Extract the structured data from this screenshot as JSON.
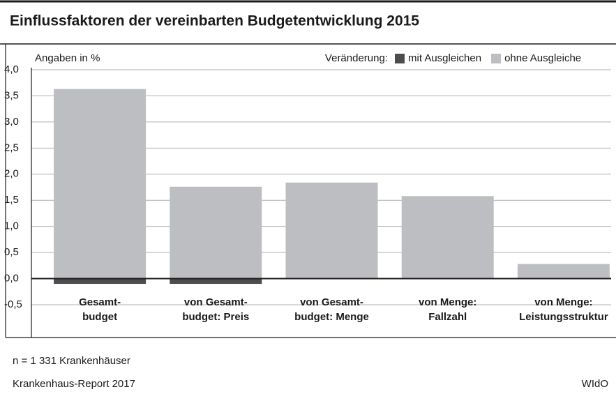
{
  "chart_data": {
    "type": "bar",
    "title": "Einflussfaktoren der vereinbarten Budgetentwicklung 2015",
    "subtitle": "Angaben in %",
    "legend_title": "Veränderung:",
    "categories": [
      [
        "Gesamt-",
        "budget"
      ],
      [
        "von Gesamt-",
        "budget: Preis"
      ],
      [
        "von Gesamt-",
        "budget: Menge"
      ],
      [
        "von Menge:",
        "Fallzahl"
      ],
      [
        "von Menge:",
        "Leistungsstruktur"
      ]
    ],
    "series": [
      {
        "name": "mit Ausgleichen",
        "color": "#4d4d4f",
        "values": [
          -0.1,
          -0.1,
          null,
          null,
          null
        ]
      },
      {
        "name": "ohne Ausgleiche",
        "color": "#bdbec1",
        "values": [
          3.63,
          1.76,
          1.84,
          1.58,
          0.28
        ]
      }
    ],
    "ylim": [
      -0.5,
      4.0
    ],
    "yticks": [
      {
        "value": -0.5,
        "label": "-0,5"
      },
      {
        "value": 0,
        "label": "0,0"
      },
      {
        "value": 0.5,
        "label": "0,5"
      },
      {
        "value": 1,
        "label": "1,0"
      },
      {
        "value": 1.5,
        "label": "1,5"
      },
      {
        "value": 2,
        "label": "2,0"
      },
      {
        "value": 2.5,
        "label": "2,5"
      },
      {
        "value": 3,
        "label": "3,0"
      },
      {
        "value": 3.5,
        "label": "3,5"
      },
      {
        "value": 4,
        "label": "4,0"
      }
    ],
    "grid": true,
    "note": "n = 1 331 Krankenhäuser",
    "source": "Krankenhaus-Report 2017",
    "publisher": "WIdO"
  }
}
